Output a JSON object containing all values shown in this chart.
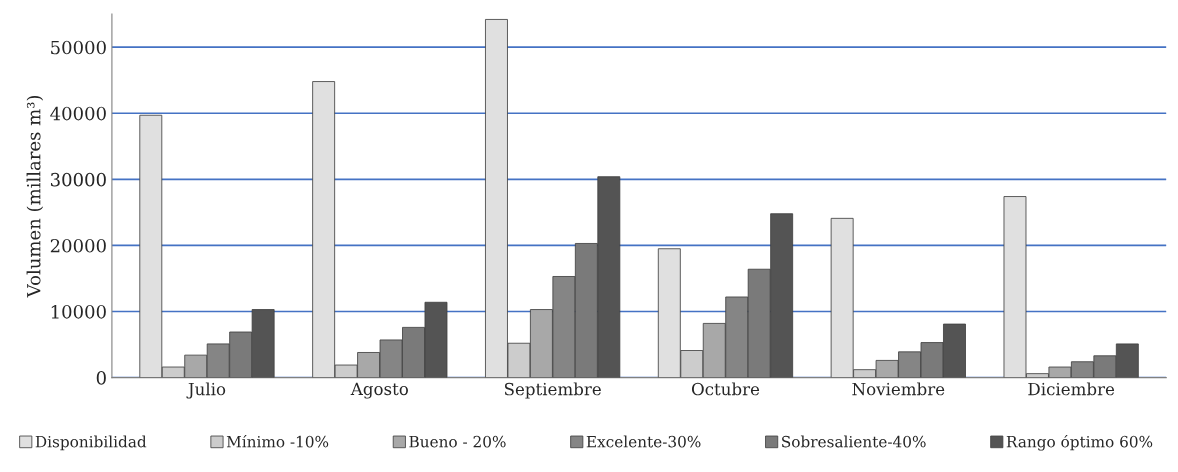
{
  "chart_data": {
    "type": "bar",
    "ylabel": "Volumen (millares m³)",
    "categories": [
      "Julio",
      "Agosto",
      "Septiembre",
      "Octubre",
      "Noviembre",
      "Diciembre"
    ],
    "series": [
      {
        "name": "Disponibilidad",
        "color": "#e0e0e0",
        "values": [
          39700,
          44800,
          54200,
          19500,
          24100,
          27400
        ]
      },
      {
        "name": "Mínimo -10%",
        "color": "#cccccc",
        "values": [
          1600,
          1900,
          5200,
          4100,
          1200,
          600
        ]
      },
      {
        "name": "Bueno - 20%",
        "color": "#a8a8a8",
        "values": [
          3400,
          3800,
          10300,
          8200,
          2600,
          1600
        ]
      },
      {
        "name": "Excelente-30%",
        "color": "#858585",
        "values": [
          5100,
          5700,
          15300,
          12200,
          3900,
          2400
        ]
      },
      {
        "name": "Sobresaliente-40%",
        "color": "#7a7a7a",
        "values": [
          6900,
          7600,
          20300,
          16400,
          5300,
          3300
        ]
      },
      {
        "name": "Rango óptimo 60%",
        "color": "#545454",
        "values": [
          10300,
          11400,
          30400,
          24800,
          8100,
          5100
        ]
      }
    ],
    "ylim": [
      0,
      55000
    ],
    "yticks": [
      0,
      10000,
      20000,
      30000,
      40000,
      50000
    ],
    "grid": "y",
    "legend": "bottom"
  }
}
